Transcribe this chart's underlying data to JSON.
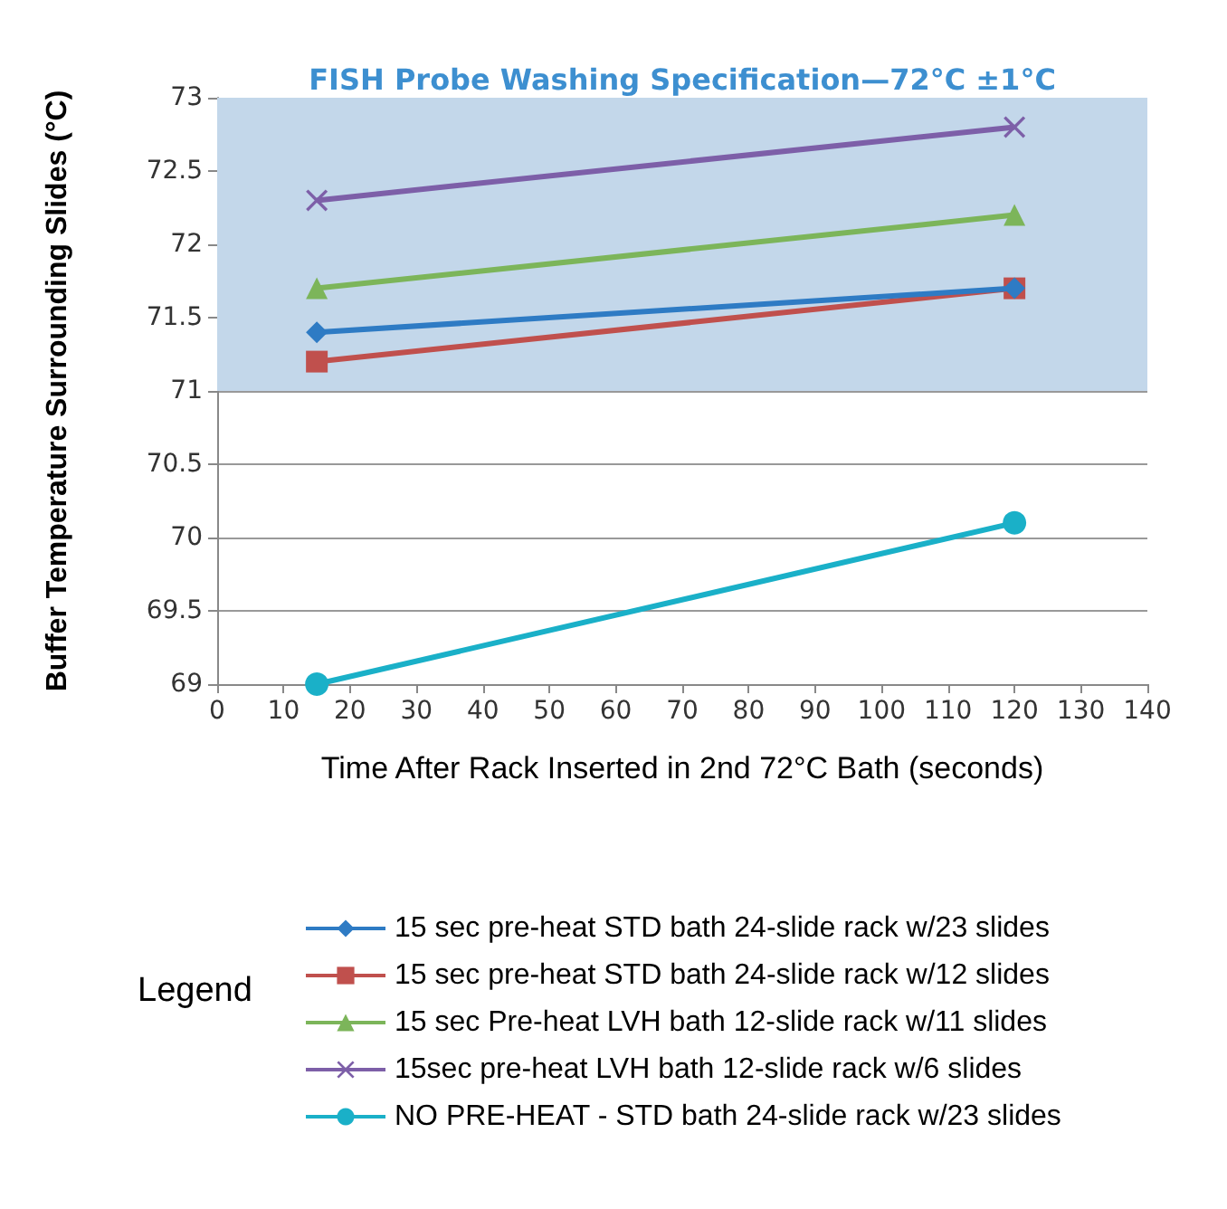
{
  "chart_data": {
    "type": "line",
    "xlabel": "Time After Rack Inserted in 2nd 72°C Bath (seconds)",
    "ylabel": "Buffer Temperature Surrounding Slides (°C)",
    "legend_title": "Legend",
    "x": [
      15,
      120
    ],
    "series": [
      {
        "name": "15 sec pre-heat STD bath 24-slide rack w/23 slides",
        "color": "#2e7bc4",
        "marker": "diamond",
        "values": [
          71.4,
          71.7
        ]
      },
      {
        "name": "15 sec pre-heat STD bath 24-slide rack w/12 slides",
        "color": "#c0504d",
        "marker": "square",
        "values": [
          71.2,
          71.7
        ]
      },
      {
        "name": "15 sec Pre-heat LVH bath 12-slide rack w/11 slides",
        "color": "#7cb55a",
        "marker": "triangle",
        "values": [
          71.7,
          72.2
        ]
      },
      {
        "name": "15sec pre-heat LVH bath 12-slide rack w/6 slides",
        "color": "#7d5fa8",
        "marker": "cross",
        "values": [
          72.3,
          72.8
        ]
      },
      {
        "name": "NO PRE-HEAT - STD bath 24-slide rack w/23 slides",
        "color": "#1ab0c8",
        "marker": "circle",
        "values": [
          69,
          70.1
        ]
      }
    ],
    "xlim": [
      0,
      140
    ],
    "xticks": [
      0,
      10,
      20,
      30,
      40,
      50,
      60,
      70,
      80,
      90,
      100,
      110,
      120,
      130,
      140
    ],
    "ylim": [
      69,
      73
    ],
    "yticks": [
      69,
      69.5,
      70,
      70.5,
      71,
      71.5,
      72,
      72.5,
      73
    ],
    "bands": [
      {
        "axis": "y",
        "from": 71,
        "to": 73,
        "label": "FISH Probe Washing Specification—72°C ±1°C",
        "color": "#c3d7ea"
      }
    ],
    "grid": "y",
    "legend": "bottom"
  }
}
